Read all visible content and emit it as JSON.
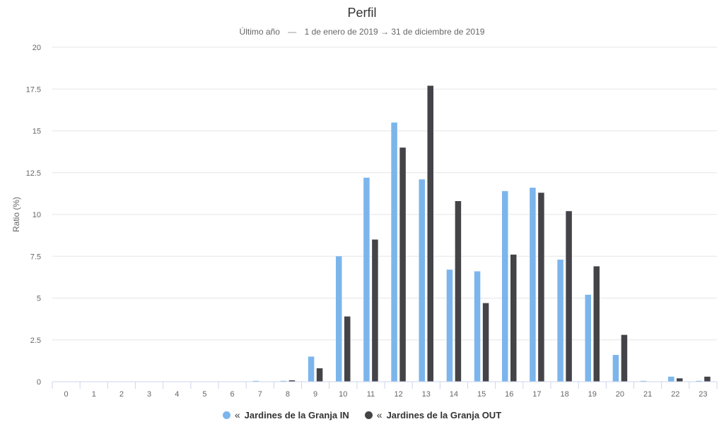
{
  "chart_data": {
    "type": "bar",
    "title": "Perfil",
    "subtitle": {
      "period": "Último año",
      "separator": "—",
      "start": "1 de enero de 2019",
      "arrow": "→",
      "end": "31 de diciembre de 2019"
    },
    "xlabel": "",
    "ylabel": "Ratio (%)",
    "ylim": [
      0,
      20
    ],
    "y_ticks": [
      "0",
      "2.5",
      "5",
      "7.5",
      "10",
      "12.5",
      "15",
      "17.5",
      "20"
    ],
    "categories": [
      "0",
      "1",
      "2",
      "3",
      "4",
      "5",
      "6",
      "7",
      "8",
      "9",
      "10",
      "11",
      "12",
      "13",
      "14",
      "15",
      "16",
      "17",
      "18",
      "19",
      "20",
      "21",
      "22",
      "23"
    ],
    "grid": true,
    "legend_position": "bottom-center",
    "series": [
      {
        "name": "Jardines de la Granja IN",
        "color": "#7cb5ec",
        "values": [
          0,
          0,
          0,
          0,
          0,
          0,
          0,
          0.05,
          0.05,
          1.5,
          7.5,
          12.2,
          15.5,
          12.1,
          6.7,
          6.6,
          11.4,
          11.6,
          7.3,
          5.2,
          1.6,
          0.05,
          0.3,
          0.05
        ]
      },
      {
        "name": "Jardines de la Granja OUT",
        "color": "#434348",
        "values": [
          0,
          0,
          0,
          0,
          0,
          0,
          0,
          0,
          0.08,
          0.8,
          3.9,
          8.5,
          14.0,
          17.7,
          10.8,
          4.7,
          7.6,
          11.3,
          10.2,
          6.9,
          2.8,
          0,
          0.2,
          0.3
        ]
      }
    ]
  },
  "legend": {
    "arrow_icon": "«"
  }
}
